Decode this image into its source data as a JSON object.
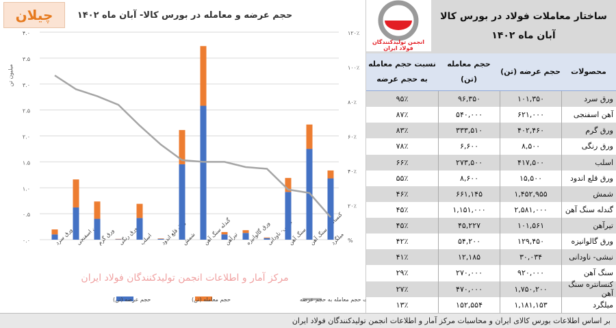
{
  "brand": "چیلان",
  "table": {
    "title": "ساختار معاملات فولاد در بورس کالا",
    "subtitle": "آبان ماه ۱۴۰۲",
    "logo_text": "انجمن تولیدکنندگان فولاد ایران",
    "headers": [
      "محصولات",
      "حجم عرضه (تن)",
      "حجم معامله (تن)",
      "نسبت حجم معامله به حجم عرضه"
    ],
    "rows": [
      [
        "ورق سرد",
        "۱۰۱,۳۵۰",
        "۹۶,۳۵۰",
        "۹۵٪"
      ],
      [
        "آهن اسفنجی",
        "۶۲۱,۰۰۰",
        "۵۴۰,۰۰۰",
        "۸۷٪"
      ],
      [
        "ورق گرم",
        "۴۰۲,۴۶۰",
        "۳۳۳,۵۱۰",
        "۸۳٪"
      ],
      [
        "ورق رنگی",
        "۸,۵۰۰",
        "۶,۶۰۰",
        "۷۸٪"
      ],
      [
        "اسلب",
        "۴۱۷,۵۰۰",
        "۲۷۳,۵۰۰",
        "۶۶٪"
      ],
      [
        "ورق قلع اندود",
        "۱۵,۵۰۰",
        "۸,۶۰۰",
        "۵۵٪"
      ],
      [
        "شمش",
        "۱,۴۵۲,۹۵۵",
        "۶۶۱,۱۴۵",
        "۴۶٪"
      ],
      [
        "گندله سنگ آهن",
        "۲,۵۸۱,۰۰۰",
        "۱,۱۵۱,۰۰۰",
        "۴۵٪"
      ],
      [
        "تیرآهن",
        "۱۰۱,۵۶۱",
        "۴۵,۲۲۷",
        "۴۵٪"
      ],
      [
        "ورق گالوانیزه",
        "۱۲۹,۴۵۰",
        "۵۴,۲۰۰",
        "۴۲٪"
      ],
      [
        "نبشی- ناودانی",
        "۳۰,۰۳۴",
        "۱۲,۱۸۵",
        "۴۱٪"
      ],
      [
        "سنگ آهن",
        "۹۲۰,۰۰۰",
        "۲۷۰,۰۰۰",
        "۲۹٪"
      ],
      [
        "کنسانتره سنگ آهن",
        "۱,۷۵۰,۲۰۰",
        "۴۷۰,۰۰۰",
        "۲۷٪"
      ],
      [
        "میلگرد",
        "۱,۱۸۱,۱۵۳",
        "۱۵۲,۵۵۴",
        "۱۳٪"
      ]
    ]
  },
  "footer": "بر اساس اطلاعات بورس کالای ایران و محاسبات مرکز آمار و اطلاعات انجمن تولیدکنندگان فولاد ایران",
  "watermark": "مرکز آمار و اطلاعات انجمن تولیدکنندگان فولاد ایران",
  "chart_data": {
    "type": "bar",
    "title": "حجم عرضه و معامله در بورس کالا- آبان ماه ۱۴۰۲",
    "ylabel": "میلیون تن",
    "ylim": [
      0,
      4
    ],
    "y2lim": [
      0,
      120
    ],
    "yticks": [
      "۰.۰",
      "۰.۵",
      "۱.۰",
      "۱.۵",
      "۲.۰",
      "۲.۵",
      "۳.۰",
      "۳.۵",
      "۴.۰"
    ],
    "y2ticks": [
      "%",
      "۲۰٪",
      "۴۰٪",
      "۶۰٪",
      "۸۰٪",
      "۱۰۰٪",
      "۱۲۰٪"
    ],
    "categories": [
      "ورق سرد",
      "آهن اسفنجی",
      "ورق گرم",
      "ورق رنگی",
      "اسلب",
      "ورق قلع اندود",
      "شمش",
      "گندله سنگ آهن",
      "تیرآهن",
      "ورق گالوانیزه",
      "نبشی- ناودانی",
      "سنگ آهن",
      "کنسانتره سنگ آهن",
      "میلگرد"
    ],
    "series": [
      {
        "name": "حجم عرضه (تن)",
        "type": "bar",
        "color": "#4472c4",
        "values": [
          0.101,
          0.621,
          0.402,
          0.0085,
          0.4175,
          0.0155,
          1.453,
          2.581,
          0.102,
          0.129,
          0.03,
          0.92,
          1.75,
          1.181
        ]
      },
      {
        "name": "حجم معامله (تن)",
        "type": "bar",
        "color": "#ed7d31",
        "values": [
          0.096,
          0.54,
          0.334,
          0.0066,
          0.2735,
          0.0086,
          0.661,
          1.151,
          0.045,
          0.054,
          0.012,
          0.27,
          0.47,
          0.153
        ]
      },
      {
        "name": "نسبت حجم معامله به حجم عرضه",
        "type": "line",
        "axis": "right",
        "color": "#a5a5a5",
        "values": [
          95,
          87,
          83,
          78,
          66,
          55,
          46,
          45,
          45,
          42,
          41,
          29,
          27,
          13
        ]
      }
    ],
    "stacked": true,
    "legend": "bottom",
    "grid": true
  }
}
